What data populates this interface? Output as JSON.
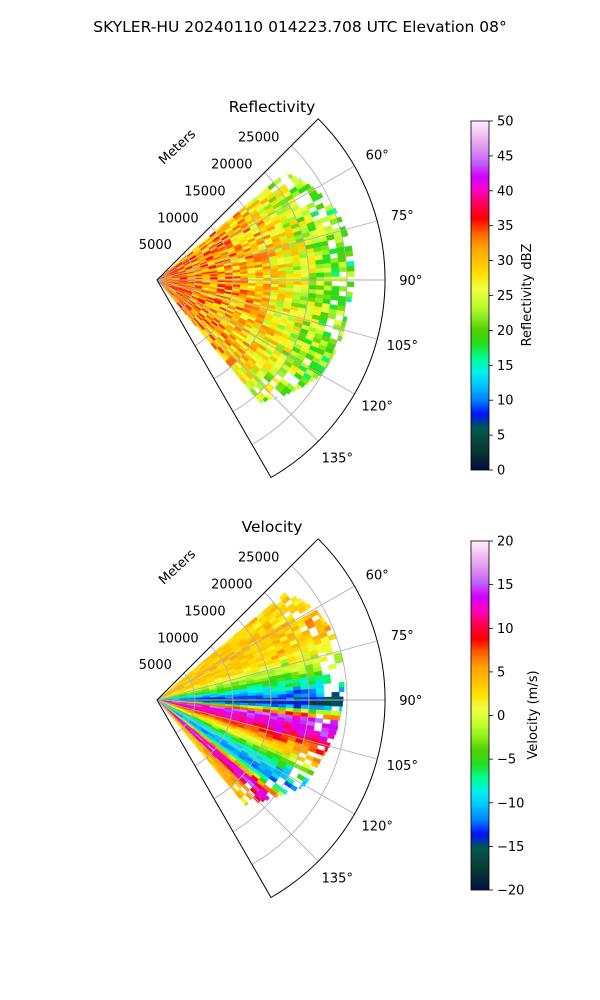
{
  "suptitle": "SKYLER-HU  20240110  014223.708 UTC Elevation 08°",
  "colors": {
    "grid": "#b0b0b0",
    "axis": "#000000",
    "background": "#ffffff"
  },
  "chart_data": [
    {
      "type": "heatmap",
      "projection": "polar-sector",
      "title": "Reflectivity",
      "range_axis_label": "Meters",
      "range_ticks": [
        5000,
        10000,
        15000,
        20000,
        25000
      ],
      "range_tick_labels": [
        "5000",
        "10000",
        "15000",
        "20000",
        "25000"
      ],
      "range_max": 30000,
      "azimuth_range": [
        45,
        150
      ],
      "azimuth_ticks": [
        60,
        75,
        90,
        105,
        120,
        135
      ],
      "azimuth_tick_labels": [
        "60°",
        "75°",
        "90°",
        "105°",
        "120°",
        "135°"
      ],
      "grid": true,
      "colorbar": {
        "label": "Reflectivity dBZ",
        "vmin": 0,
        "vmax": 50,
        "ticks": [
          0,
          5,
          10,
          15,
          20,
          25,
          30,
          35,
          40,
          45,
          50
        ],
        "tick_labels": [
          "0",
          "5",
          "10",
          "15",
          "20",
          "25",
          "30",
          "35",
          "40",
          "45",
          "50"
        ],
        "colormap": [
          {
            "stop": 0.0,
            "color": "#001040"
          },
          {
            "stop": 0.06,
            "color": "#0a3a30"
          },
          {
            "stop": 0.12,
            "color": "#005a50"
          },
          {
            "stop": 0.16,
            "color": "#0010ff"
          },
          {
            "stop": 0.2,
            "color": "#0080ff"
          },
          {
            "stop": 0.24,
            "color": "#00c0ff"
          },
          {
            "stop": 0.28,
            "color": "#00f0f0"
          },
          {
            "stop": 0.32,
            "color": "#00ff90"
          },
          {
            "stop": 0.36,
            "color": "#20e020"
          },
          {
            "stop": 0.4,
            "color": "#50d000"
          },
          {
            "stop": 0.44,
            "color": "#90ee20"
          },
          {
            "stop": 0.48,
            "color": "#c8ff30"
          },
          {
            "stop": 0.52,
            "color": "#f0ff40"
          },
          {
            "stop": 0.56,
            "color": "#ffe000"
          },
          {
            "stop": 0.6,
            "color": "#ffc000"
          },
          {
            "stop": 0.64,
            "color": "#ffa000"
          },
          {
            "stop": 0.68,
            "color": "#ff6000"
          },
          {
            "stop": 0.72,
            "color": "#ff0000"
          },
          {
            "stop": 0.76,
            "color": "#ff0050"
          },
          {
            "stop": 0.8,
            "color": "#ff00c0"
          },
          {
            "stop": 0.84,
            "color": "#d000ff"
          },
          {
            "stop": 0.88,
            "color": "#c060ff"
          },
          {
            "stop": 0.92,
            "color": "#e090f0"
          },
          {
            "stop": 0.96,
            "color": "#f0c0f0"
          },
          {
            "stop": 1.0,
            "color": "#fff0ff"
          }
        ]
      },
      "data_extent": {
        "az_min": 50,
        "az_max": 140,
        "coverage": [
          {
            "azimuth": 50,
            "range": 22000
          },
          {
            "azimuth": 60,
            "range": 24000
          },
          {
            "azimuth": 70,
            "range": 25500
          },
          {
            "azimuth": 80,
            "range": 26000
          },
          {
            "azimuth": 90,
            "range": 26000
          },
          {
            "azimuth": 100,
            "range": 25500
          },
          {
            "azimuth": 110,
            "range": 25500
          },
          {
            "azimuth": 120,
            "range": 25000
          },
          {
            "azimuth": 130,
            "range": 23000
          },
          {
            "azimuth": 140,
            "range": 21000
          }
        ],
        "field": [
          {
            "range": 0,
            "value": 34
          },
          {
            "range": 5000,
            "value": 32
          },
          {
            "range": 10000,
            "value": 31
          },
          {
            "range": 15000,
            "value": 29
          },
          {
            "range": 18000,
            "value": 26
          },
          {
            "range": 21000,
            "value": 23
          },
          {
            "range": 24000,
            "value": 21
          },
          {
            "range": 26000,
            "value": 20
          }
        ]
      }
    },
    {
      "type": "heatmap",
      "projection": "polar-sector",
      "title": "Velocity",
      "range_axis_label": "Meters",
      "range_ticks": [
        5000,
        10000,
        15000,
        20000,
        25000
      ],
      "range_tick_labels": [
        "5000",
        "10000",
        "15000",
        "20000",
        "25000"
      ],
      "range_max": 30000,
      "azimuth_range": [
        45,
        150
      ],
      "azimuth_ticks": [
        60,
        75,
        90,
        105,
        120,
        135
      ],
      "azimuth_tick_labels": [
        "60°",
        "75°",
        "90°",
        "105°",
        "120°",
        "135°"
      ],
      "grid": true,
      "colorbar": {
        "label": "Velocity (m/s)",
        "vmin": -20,
        "vmax": 20,
        "ticks": [
          -20,
          -15,
          -10,
          -5,
          0,
          5,
          10,
          15,
          20
        ],
        "tick_labels": [
          "−20",
          "−15",
          "−10",
          "−5",
          "0",
          "5",
          "10",
          "15",
          "20"
        ],
        "colormap": [
          {
            "stop": 0.0,
            "color": "#001040"
          },
          {
            "stop": 0.06,
            "color": "#0a3a30"
          },
          {
            "stop": 0.12,
            "color": "#005a50"
          },
          {
            "stop": 0.16,
            "color": "#0010ff"
          },
          {
            "stop": 0.2,
            "color": "#0080ff"
          },
          {
            "stop": 0.24,
            "color": "#00c0ff"
          },
          {
            "stop": 0.28,
            "color": "#00f0f0"
          },
          {
            "stop": 0.32,
            "color": "#00ff90"
          },
          {
            "stop": 0.36,
            "color": "#20e020"
          },
          {
            "stop": 0.4,
            "color": "#50d000"
          },
          {
            "stop": 0.44,
            "color": "#90ee20"
          },
          {
            "stop": 0.48,
            "color": "#c8ff30"
          },
          {
            "stop": 0.52,
            "color": "#f0ff40"
          },
          {
            "stop": 0.56,
            "color": "#ffe000"
          },
          {
            "stop": 0.6,
            "color": "#ffc000"
          },
          {
            "stop": 0.64,
            "color": "#ffa000"
          },
          {
            "stop": 0.68,
            "color": "#ff6000"
          },
          {
            "stop": 0.72,
            "color": "#ff0000"
          },
          {
            "stop": 0.76,
            "color": "#ff0050"
          },
          {
            "stop": 0.8,
            "color": "#ff00c0"
          },
          {
            "stop": 0.84,
            "color": "#d000ff"
          },
          {
            "stop": 0.88,
            "color": "#c060ff"
          },
          {
            "stop": 0.92,
            "color": "#e090f0"
          },
          {
            "stop": 0.96,
            "color": "#f0c0f0"
          },
          {
            "stop": 1.0,
            "color": "#fff0ff"
          }
        ]
      },
      "data_extent": {
        "az_min": 50,
        "az_max": 140,
        "coverage": [
          {
            "azimuth": 50,
            "range": 22000
          },
          {
            "azimuth": 60,
            "range": 24000
          },
          {
            "azimuth": 70,
            "range": 25000
          },
          {
            "azimuth": 80,
            "range": 25000
          },
          {
            "azimuth": 90,
            "range": 24500
          },
          {
            "azimuth": 100,
            "range": 24000
          },
          {
            "azimuth": 110,
            "range": 23000
          },
          {
            "azimuth": 120,
            "range": 22500
          },
          {
            "azimuth": 130,
            "range": 20000
          },
          {
            "azimuth": 140,
            "range": 18000
          }
        ],
        "field": [
          {
            "azimuth": 50,
            "value": 3
          },
          {
            "azimuth": 60,
            "value": 4
          },
          {
            "azimuth": 70,
            "value": 3
          },
          {
            "azimuth": 78,
            "value": -2
          },
          {
            "azimuth": 85,
            "value": -9
          },
          {
            "azimuth": 92,
            "value": -16
          },
          {
            "azimuth": 97,
            "value": 15
          },
          {
            "azimuth": 105,
            "value": 10
          },
          {
            "azimuth": 112,
            "value": 2
          },
          {
            "azimuth": 118,
            "value": -8
          },
          {
            "azimuth": 125,
            "value": -12
          },
          {
            "azimuth": 131,
            "value": 16
          },
          {
            "azimuth": 136,
            "value": 5
          },
          {
            "azimuth": 140,
            "value": 3
          }
        ]
      }
    }
  ]
}
